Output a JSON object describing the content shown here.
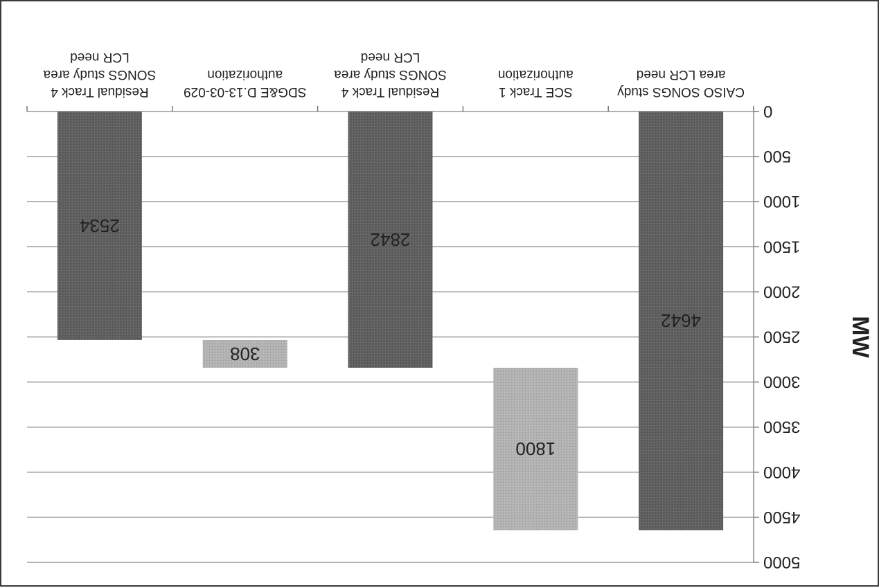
{
  "chart_data": {
    "type": "bar",
    "subtype": "waterfall",
    "orientation": "rotated-180",
    "ylabel": "MW",
    "ylim": [
      0,
      5000
    ],
    "yticks": [
      0,
      500,
      1000,
      1500,
      2000,
      2500,
      3000,
      3500,
      4000,
      4500,
      5000
    ],
    "grid": true,
    "categories": [
      [
        "CAISO SONGS study",
        "area LCR need"
      ],
      [
        "SCE Track 1",
        "authorization"
      ],
      [
        "Residual Track 4",
        "SONGS study area",
        "LCR need"
      ],
      [
        "SDG&E D.13-03-029",
        "authorization"
      ],
      [
        "Residual Track 4",
        "SONGS study area",
        "LCR need"
      ]
    ],
    "bars": [
      {
        "base": 0,
        "value": 4642,
        "label": "4642",
        "color": "#5f5f5f"
      },
      {
        "base": 2842,
        "value": 1800,
        "label": "1800",
        "color": "#b3b3b3"
      },
      {
        "base": 0,
        "value": 2842,
        "label": "2842",
        "color": "#5f5f5f"
      },
      {
        "base": 2534,
        "value": 308,
        "label": "308",
        "color": "#b3b3b3"
      },
      {
        "base": 0,
        "value": 2534,
        "label": "2534",
        "color": "#5f5f5f"
      }
    ]
  }
}
